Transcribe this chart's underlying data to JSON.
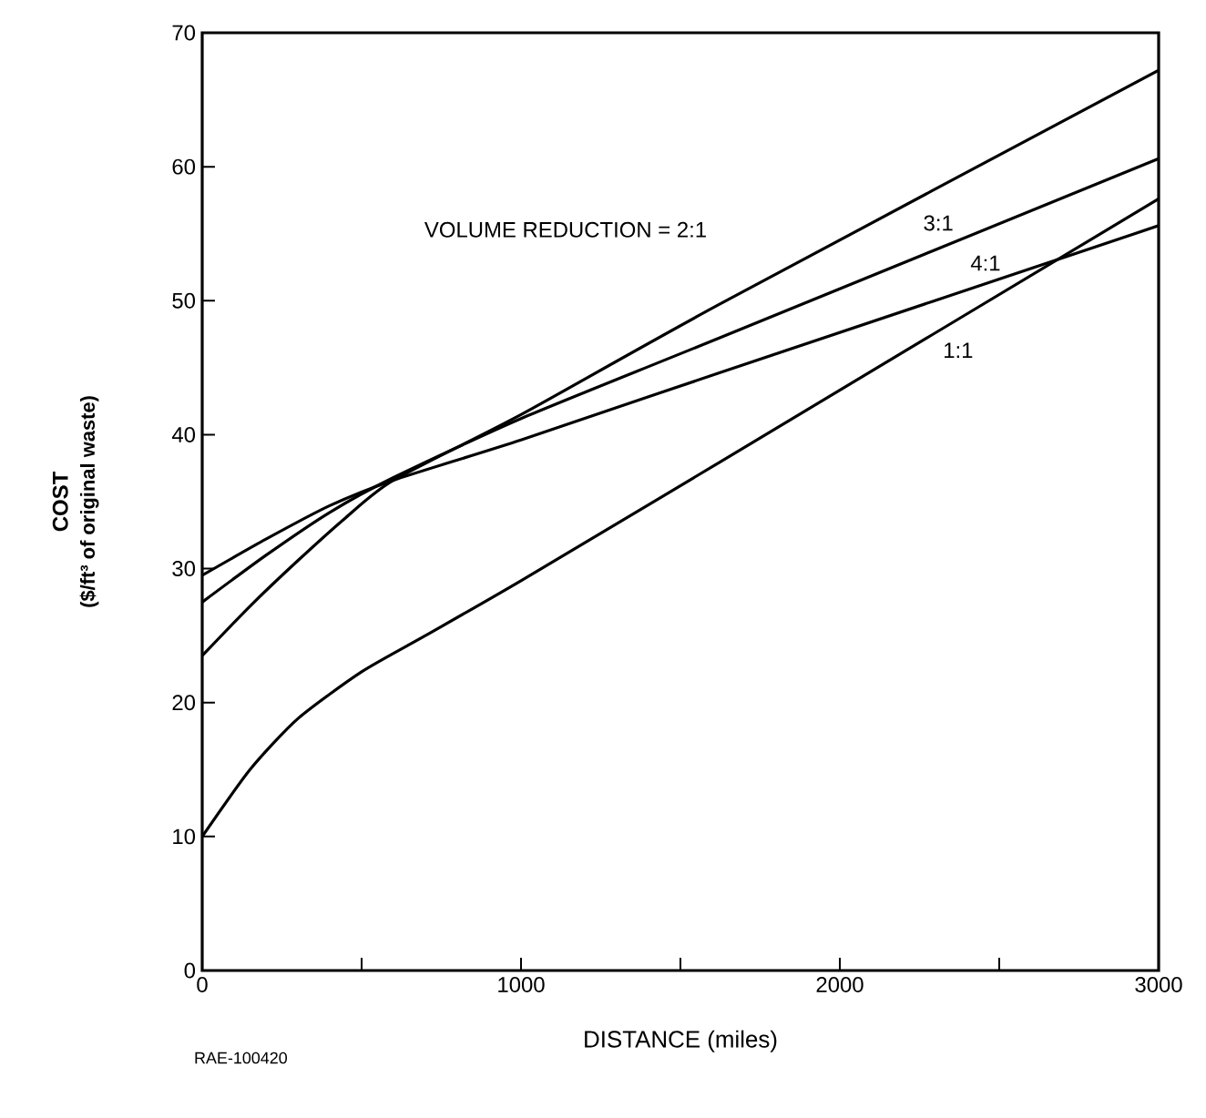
{
  "chart_data": {
    "type": "line",
    "xlabel": "DISTANCE (miles)",
    "ylabel": "COST",
    "xlim": [
      0,
      3000
    ],
    "ylim": [
      0,
      70
    ],
    "xticks": [
      0,
      {
        "value": 500,
        "label": null
      },
      1000,
      {
        "value": 1500,
        "label": null
      },
      2000,
      {
        "value": 2500,
        "label": null
      },
      3000
    ],
    "yticks": [
      0,
      10,
      20,
      30,
      40,
      50,
      60,
      70
    ],
    "grid": false,
    "marker": "none",
    "line_style": "solid",
    "series": [
      {
        "color": "#000000",
        "x": [
          0,
          150,
          300,
          450,
          600,
          1000,
          1620,
          3000
        ],
        "values": [
          23.5,
          27.2,
          30.6,
          33.8,
          36.6,
          41.5,
          49.7,
          67.2
        ]
      },
      {
        "color": "#000000",
        "x": [
          0,
          200,
          400,
          600,
          1000,
          1620,
          3000
        ],
        "values": [
          27.5,
          31,
          34.2,
          36.8,
          41.2,
          47.2,
          60.6
        ]
      },
      {
        "color": "#000000",
        "x": [
          0,
          200,
          400,
          600,
          1000,
          1620,
          3000
        ],
        "values": [
          29.5,
          32.2,
          34.7,
          36.6,
          39.6,
          44.6,
          55.6
        ]
      },
      {
        "color": "#000000",
        "x": [
          0,
          150,
          300,
          500,
          700,
          1000,
          1620,
          3000
        ],
        "values": [
          10,
          15,
          18.8,
          22.3,
          25,
          29.1,
          37.9,
          57.6
        ]
      }
    ],
    "annotations": [
      "($/ft³ of original waste)",
      "RAE-100420",
      "VOLUME REDUCTION = 2:1",
      {
        "text": "3:1",
        "x": 2309,
        "y": 55.8
      },
      {
        "text": "4:1",
        "x": 2457,
        "y": 52.8
      },
      {
        "text": "1:1",
        "x": 2371,
        "y": 46.3
      }
    ]
  }
}
